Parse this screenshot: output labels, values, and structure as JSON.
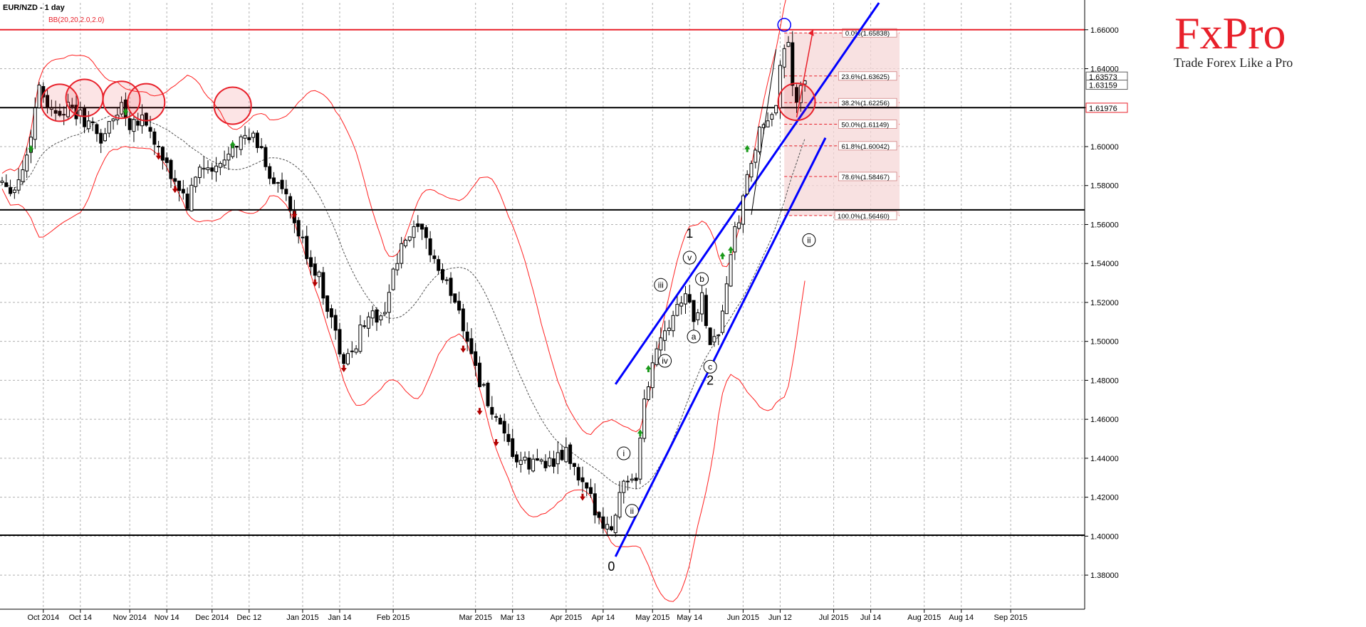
{
  "header": {
    "title": "EUR/NZD - 1 day",
    "indicator": "BB(20,20,2.0,2.0)"
  },
  "brand": {
    "name": "FxPro",
    "tagline": "Trade Forex Like a Pro",
    "color": "#e8202a"
  },
  "colors": {
    "background": "#ffffff",
    "grid": "#b0b0b0",
    "candle": "#000000",
    "bollinger": "#ff2020",
    "midline": "#505050",
    "channel": "#0000ff",
    "level_red": "#e8202a",
    "fib_fill": "#f6d7d7",
    "up_arrow": "#1a9a1a",
    "down_arrow": "#b00000"
  },
  "chart_data": {
    "type": "candlestick",
    "symbol": "EUR/NZD",
    "timeframe": "1 day",
    "ylim": [
      1.3625,
      1.6738
    ],
    "y_ticks": [
      "1.66000",
      "1.64000",
      "1.62000",
      "1.60000",
      "1.58000",
      "1.56000",
      "1.54000",
      "1.52000",
      "1.50000",
      "1.48000",
      "1.46000",
      "1.44000",
      "1.42000",
      "1.40000",
      "1.38000"
    ],
    "x_labels": [
      {
        "label": "Oct 2014",
        "bar": 10
      },
      {
        "label": "Oct 14",
        "bar": 19
      },
      {
        "label": "Nov 2014",
        "bar": 31
      },
      {
        "label": "Nov 14",
        "bar": 40
      },
      {
        "label": "Dec 2014",
        "bar": 51
      },
      {
        "label": "Dec 12",
        "bar": 60
      },
      {
        "label": "Jan 2015",
        "bar": 73
      },
      {
        "label": "Jan 14",
        "bar": 82
      },
      {
        "label": "Feb 2015",
        "bar": 95
      },
      {
        "label": "Mar 2015",
        "bar": 115
      },
      {
        "label": "Mar 13",
        "bar": 124
      },
      {
        "label": "Apr 2015",
        "bar": 137
      },
      {
        "label": "Apr 14",
        "bar": 146
      },
      {
        "label": "May 2015",
        "bar": 158
      },
      {
        "label": "May 14",
        "bar": 167
      },
      {
        "label": "Jun 2015",
        "bar": 180
      },
      {
        "label": "Jun 12",
        "bar": 189
      },
      {
        "label": "Jul 2015",
        "bar": 202
      },
      {
        "label": "Jul 14",
        "bar": 211
      },
      {
        "label": "Aug 2015",
        "bar": 224
      },
      {
        "label": "Aug 14",
        "bar": 233
      },
      {
        "label": "Sep 2015",
        "bar": 245
      }
    ],
    "x_range": [
      0,
      263
    ],
    "candles": [],
    "horizontal_levels": [
      {
        "price": 1.66,
        "color": "#e8202a",
        "width": 2
      },
      {
        "price": 1.62,
        "color": "#000000",
        "width": 2
      },
      {
        "price": 1.5675,
        "color": "#000000",
        "width": 2
      },
      {
        "price": 1.4005,
        "color": "#000000",
        "width": 2
      }
    ],
    "price_markers": [
      {
        "value": "1.63573",
        "price": 1.63573,
        "fill": "#ffffff",
        "stroke": "#606060"
      },
      {
        "value": "1.63159",
        "price": 1.63159,
        "fill": "#ffffff",
        "stroke": "#606060"
      },
      {
        "value": "1.61976",
        "price": 1.61976,
        "fill": "#ffffff",
        "stroke": "#e8202a"
      }
    ],
    "fibonacci": {
      "high": 1.65838,
      "low": 1.5646,
      "bar_start": 190,
      "bar_end": 218,
      "levels": [
        {
          "label": "0.0%(1.65838)",
          "price": 1.65838
        },
        {
          "label": "23.6%(1.63625)",
          "price": 1.63625
        },
        {
          "label": "38.2%(1.62256)",
          "price": 1.62256
        },
        {
          "label": "50.0%(1.61149)",
          "price": 1.61149
        },
        {
          "label": "61.8%(1.60042)",
          "price": 1.60042
        },
        {
          "label": "78.6%(1.58467)",
          "price": 1.58467
        },
        {
          "label": "100.0%(1.56460)",
          "price": 1.5646
        }
      ]
    },
    "channel_lines": [
      {
        "from": [
          149,
          1.478
        ],
        "to": [
          213,
          1.6738
        ]
      },
      {
        "from": [
          149,
          1.3895
        ],
        "to": [
          200,
          1.6045
        ]
      }
    ],
    "wave_labels": [
      {
        "text": "0",
        "bar": 148,
        "price": 1.3845,
        "circled": false
      },
      {
        "text": "i",
        "bar": 151,
        "price": 1.4425,
        "circled": true
      },
      {
        "text": "ii",
        "bar": 153,
        "price": 1.413,
        "circled": true
      },
      {
        "text": "iii",
        "bar": 160,
        "price": 1.529,
        "circled": true
      },
      {
        "text": "iv",
        "bar": 161,
        "price": 1.49,
        "circled": true
      },
      {
        "text": "v",
        "bar": 167,
        "price": 1.543,
        "circled": true
      },
      {
        "text": "1",
        "bar": 167,
        "price": 1.5555,
        "circled": false
      },
      {
        "text": "a",
        "bar": 168,
        "price": 1.5025,
        "circled": true
      },
      {
        "text": "b",
        "bar": 170,
        "price": 1.532,
        "circled": true
      },
      {
        "text": "c",
        "bar": 172,
        "price": 1.487,
        "circled": true
      },
      {
        "text": "2",
        "bar": 172,
        "price": 1.48,
        "circled": false
      },
      {
        "text": "ii",
        "bar": 196,
        "price": 1.552,
        "circled": true
      }
    ],
    "highlight_circles": [
      {
        "bar": 14,
        "price": 1.6225
      },
      {
        "bar": 20,
        "price": 1.625
      },
      {
        "bar": 29,
        "price": 1.624
      },
      {
        "bar": 35,
        "price": 1.6228
      },
      {
        "bar": 56,
        "price": 1.621
      },
      {
        "bar": 193,
        "price": 1.623
      }
    ],
    "blue_circle": {
      "bar": 190,
      "price": 1.6625
    },
    "signal_arrows": [
      {
        "dir": "up",
        "bar": 7,
        "price": 1.599
      },
      {
        "dir": "up",
        "bar": 30,
        "price": 1.618
      },
      {
        "dir": "up",
        "bar": 56,
        "price": 1.601
      },
      {
        "dir": "down",
        "bar": 38,
        "price": 1.595
      },
      {
        "dir": "down",
        "bar": 42,
        "price": 1.578
      },
      {
        "dir": "down",
        "bar": 71,
        "price": 1.565
      },
      {
        "dir": "down",
        "bar": 76,
        "price": 1.53
      },
      {
        "dir": "down",
        "bar": 83,
        "price": 1.486
      },
      {
        "dir": "down",
        "bar": 112,
        "price": 1.496
      },
      {
        "dir": "down",
        "bar": 116,
        "price": 1.464
      },
      {
        "dir": "down",
        "bar": 120,
        "price": 1.448
      },
      {
        "dir": "down",
        "bar": 141,
        "price": 1.42
      },
      {
        "dir": "up",
        "bar": 155,
        "price": 1.453
      },
      {
        "dir": "up",
        "bar": 157,
        "price": 1.486
      },
      {
        "dir": "up",
        "bar": 175,
        "price": 1.544
      },
      {
        "dir": "up",
        "bar": 177,
        "price": 1.547
      },
      {
        "dir": "up",
        "bar": 181,
        "price": 1.599
      }
    ],
    "projection_arrow": {
      "from": [
        193,
        1.615
      ],
      "to": [
        197,
        1.66
      ]
    },
    "bar_pen": {
      "from": [
        182,
        1.565
      ],
      "to": [
        188,
        1.65
      ]
    }
  }
}
